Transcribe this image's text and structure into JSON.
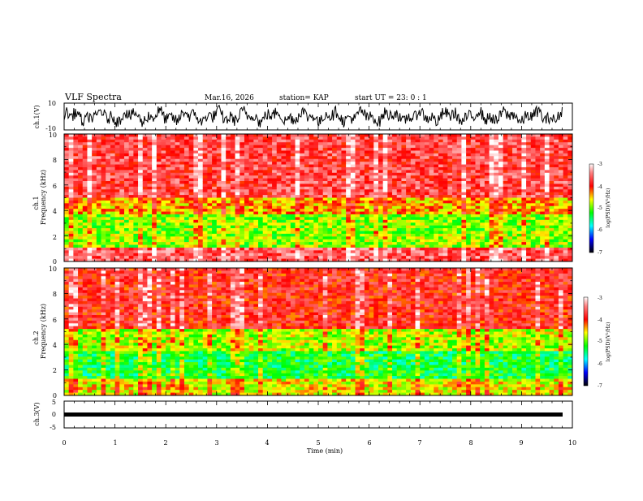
{
  "header": {
    "title": "VLF Spectra",
    "date": "Mar.16, 2026",
    "station": "station= KAP",
    "start_time": "start  UT  =   23: 0  : 1"
  },
  "chart_data": [
    {
      "type": "line",
      "id": "ch1-waveform",
      "ylabel": "ch.1(V)",
      "ylim": [
        -10,
        10
      ],
      "yticks": [
        "10",
        "-10"
      ],
      "xlim": [
        0,
        10
      ],
      "description_values": "dense oscillating voltage trace roughly between -8 and 9 V"
    },
    {
      "type": "heatmap",
      "id": "ch1-spectrogram",
      "ylabel_top": "ch.1",
      "ylabel": "Frequency (kHz)",
      "ylim": [
        0,
        10
      ],
      "yticks": [
        "0",
        "2",
        "4",
        "6",
        "8",
        "10"
      ],
      "xlim": [
        0,
        10
      ],
      "colorbar": {
        "label": "log(PSD)(V²/Hz)",
        "ticks": [
          "-3",
          "-4",
          "-5",
          "-6",
          "-7"
        ],
        "range": [
          -7,
          -3
        ]
      },
      "bands_kHz": [
        {
          "from": 0,
          "to": 1.0,
          "level": -3.6
        },
        {
          "from": 1.0,
          "to": 3.7,
          "level": -4.9
        },
        {
          "from": 3.7,
          "to": 4.9,
          "level": -4.4
        },
        {
          "from": 4.9,
          "to": 10,
          "level": -3.7
        }
      ]
    },
    {
      "type": "heatmap",
      "id": "ch2-spectrogram",
      "ylabel_top": "ch.2",
      "ylabel": "Frequency (kHz)",
      "ylim": [
        0,
        10
      ],
      "yticks": [
        "0",
        "2",
        "4",
        "6",
        "8",
        "10"
      ],
      "xlim": [
        0,
        10
      ],
      "colorbar": {
        "label": "log(PSD)(V²/Hz)",
        "ticks": [
          "-3",
          "-4",
          "-5",
          "-6",
          "-7"
        ],
        "range": [
          -7,
          -3
        ]
      },
      "bands_kHz": [
        {
          "from": 0,
          "to": 1.2,
          "level": -4.6
        },
        {
          "from": 1.2,
          "to": 3.5,
          "level": -5.3
        },
        {
          "from": 3.5,
          "to": 5.2,
          "level": -4.8
        },
        {
          "from": 5.2,
          "to": 10,
          "level": -3.9
        }
      ]
    },
    {
      "type": "line",
      "id": "ch3-waveform",
      "ylabel": "ch.3(V)",
      "ylim": [
        -5,
        5
      ],
      "yticks": [
        "5",
        "0",
        "-5"
      ],
      "xlim": [
        0,
        10
      ],
      "xlabel": "Time (min)",
      "xticks": [
        "0",
        "1",
        "2",
        "3",
        "4",
        "5",
        "6",
        "7",
        "8",
        "9",
        "10"
      ],
      "description_values": "flat trace near -0.3 V with small noise"
    }
  ]
}
